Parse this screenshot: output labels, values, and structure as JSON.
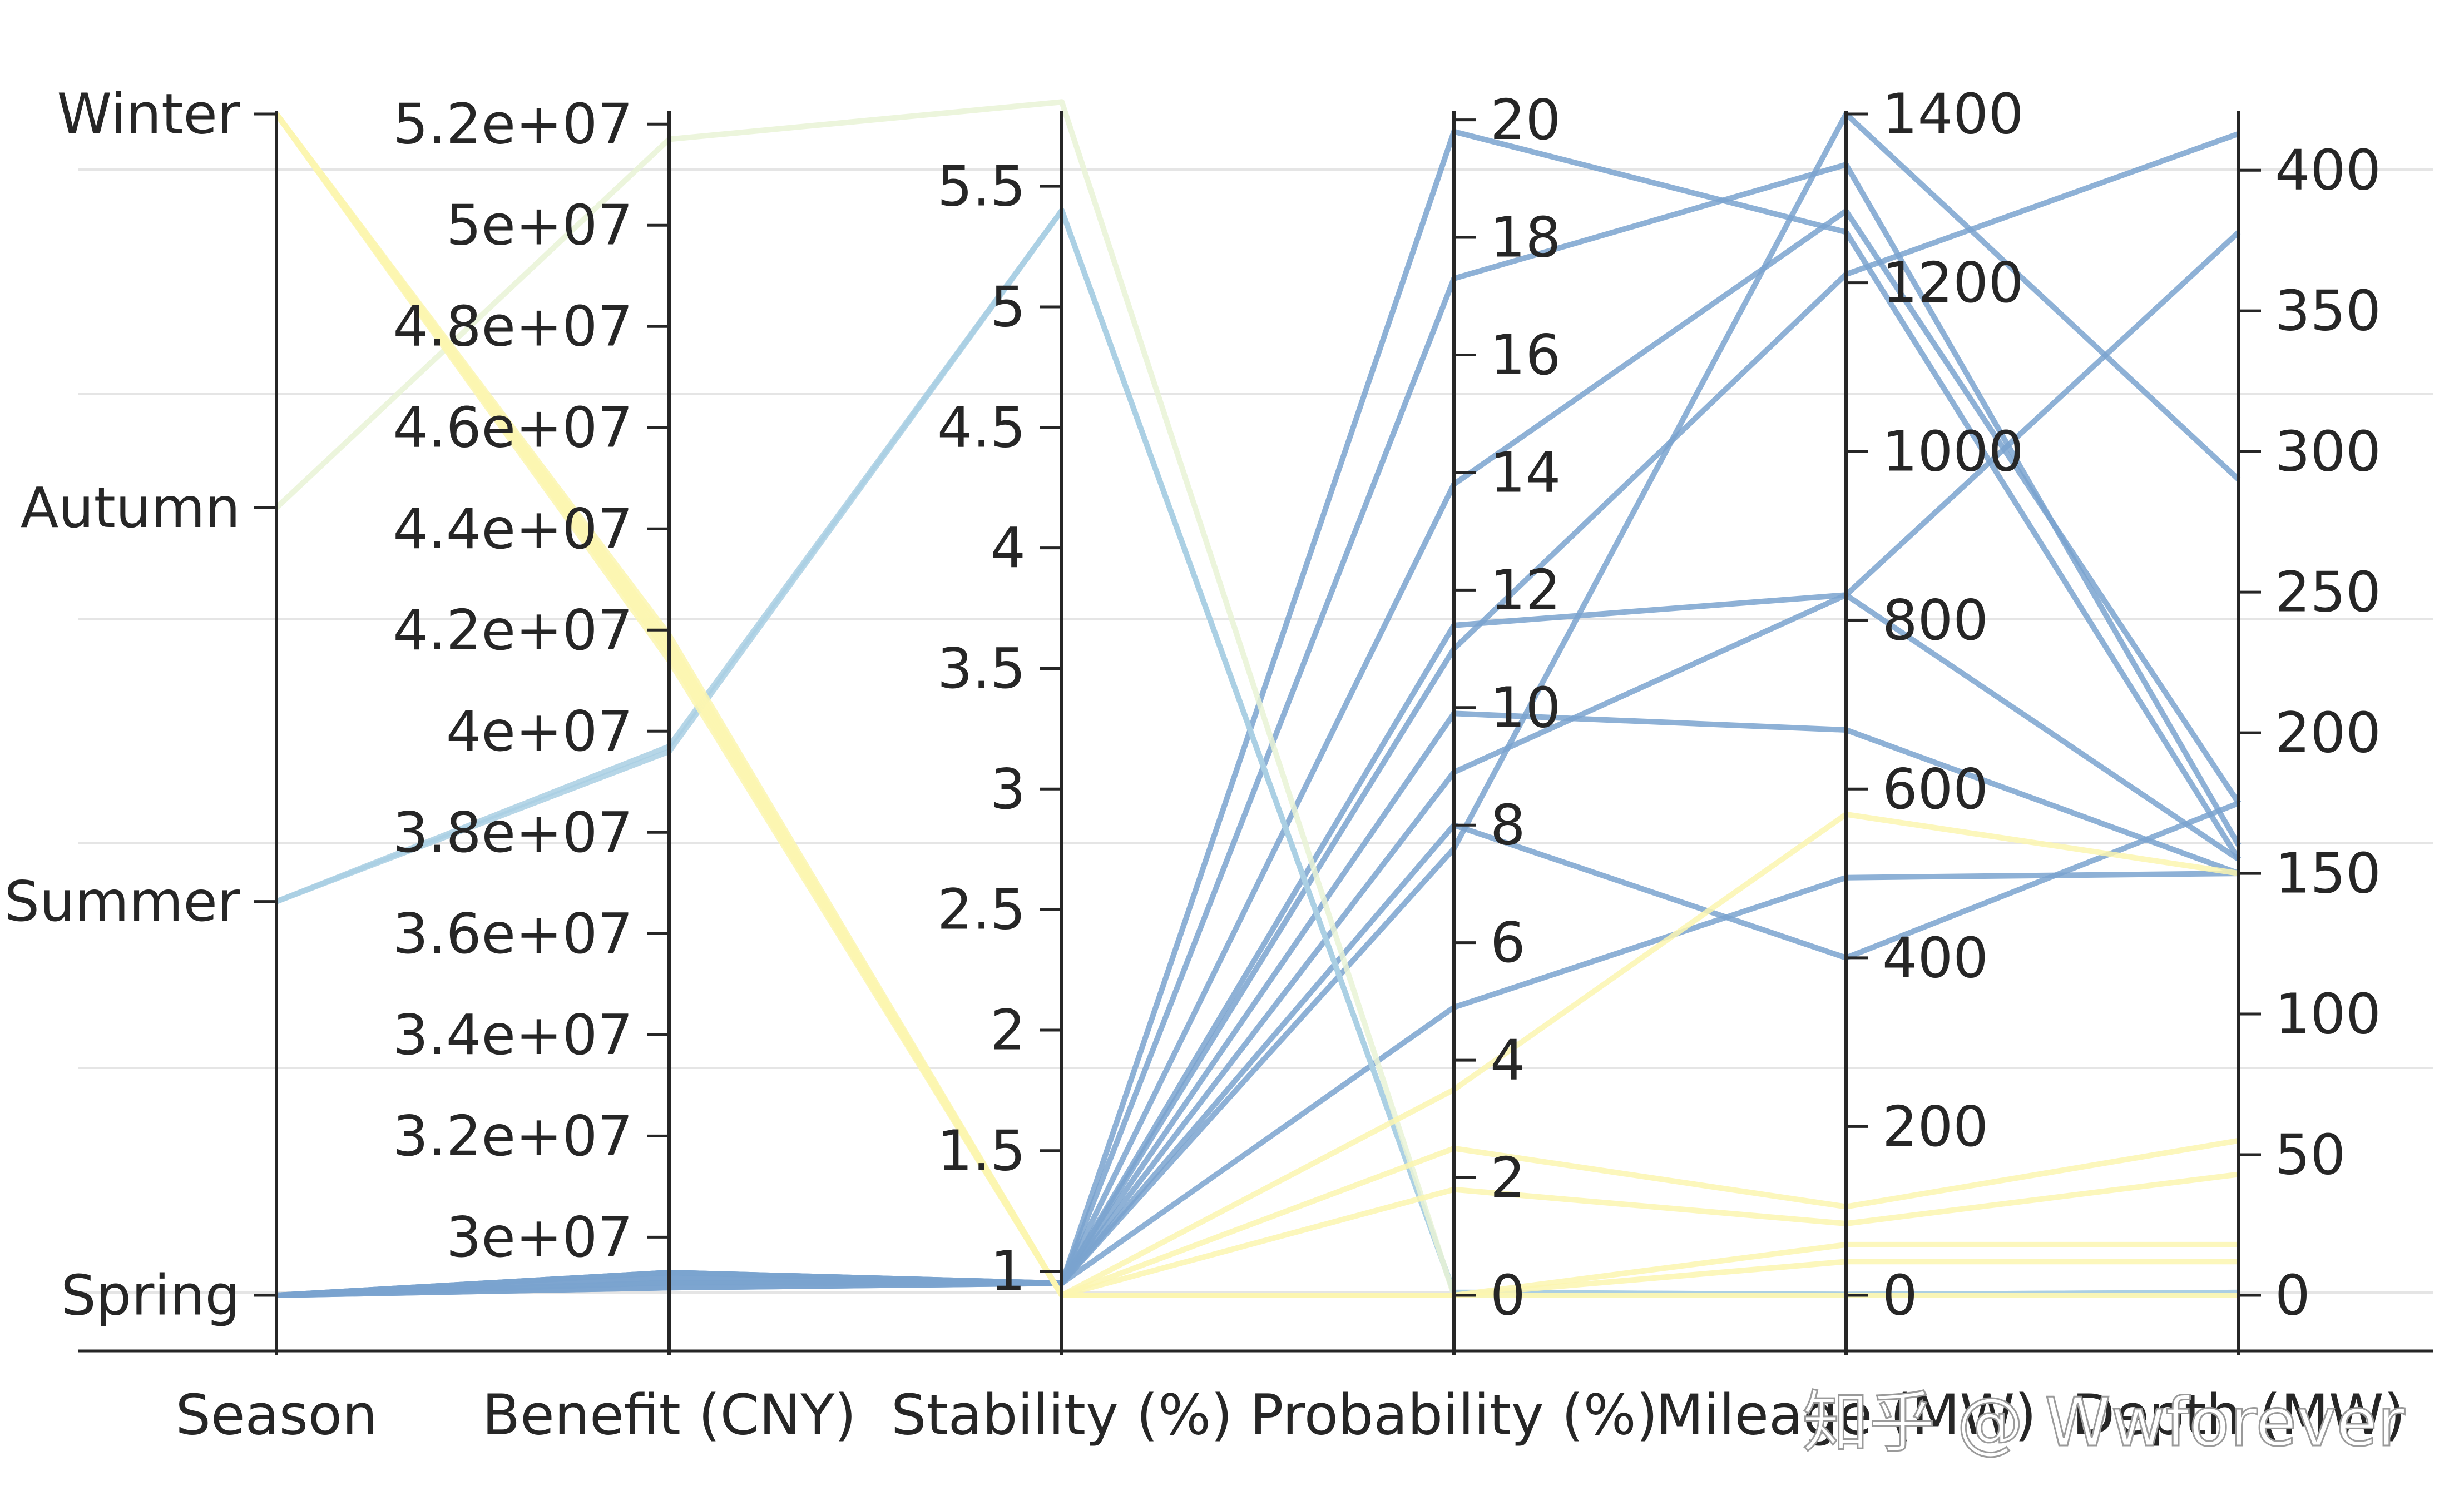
{
  "chart_data": {
    "type": "parallel_coordinates",
    "axes": [
      {
        "key": "season",
        "label": "Season",
        "kind": "categorical",
        "categories": [
          "Spring",
          "Summer",
          "Autumn",
          "Winter"
        ],
        "ticks": [
          "Spring",
          "Summer",
          "Autumn",
          "Winter"
        ]
      },
      {
        "key": "benefit",
        "label": "Benefit (CNY)",
        "kind": "numeric",
        "range": [
          28850000,
          52200000
        ],
        "ticks": [
          "3e+07",
          "3.2e+07",
          "3.4e+07",
          "3.6e+07",
          "3.8e+07",
          "4e+07",
          "4.2e+07",
          "4.4e+07",
          "4.6e+07",
          "4.8e+07",
          "5e+07",
          "5.2e+07"
        ]
      },
      {
        "key": "stability",
        "label": "Stability (%)",
        "kind": "numeric",
        "range": [
          0.9,
          5.8
        ],
        "ticks": [
          "1",
          "1.5",
          "2",
          "2.5",
          "3",
          "3.5",
          "4",
          "4.5",
          "5",
          "5.5"
        ]
      },
      {
        "key": "probability",
        "label": "Probability (%)",
        "kind": "numeric",
        "range": [
          0,
          20.1
        ],
        "ticks": [
          "0",
          "2",
          "4",
          "6",
          "8",
          "10",
          "12",
          "14",
          "16",
          "18",
          "20"
        ]
      },
      {
        "key": "mileage",
        "label": "Mileage (MW)",
        "kind": "numeric",
        "range": [
          0,
          1400
        ],
        "ticks": [
          "0",
          "200",
          "400",
          "600",
          "800",
          "1000",
          "1200",
          "1400"
        ]
      },
      {
        "key": "depth",
        "label": "Depth (MW)",
        "kind": "numeric",
        "range": [
          0,
          420
        ],
        "ticks": [
          "0",
          "50",
          "100",
          "150",
          "200",
          "250",
          "300",
          "350",
          "400"
        ]
      }
    ],
    "series": [
      {
        "name": "Spring",
        "color": "#7aa3cf"
      },
      {
        "name": "Summer",
        "color": "#a9cfe3"
      },
      {
        "name": "Autumn",
        "color": "#e9f3d6"
      },
      {
        "name": "Winter",
        "color": "#fbf6b0"
      }
    ],
    "records": [
      {
        "season": "Spring",
        "benefit": 29300000,
        "stability": 0.95,
        "probability": 19.8,
        "mileage": 1260,
        "depth": 155
      },
      {
        "season": "Spring",
        "benefit": 29200000,
        "stability": 0.95,
        "probability": 17.3,
        "mileage": 1340,
        "depth": 160
      },
      {
        "season": "Spring",
        "benefit": 29100000,
        "stability": 0.95,
        "probability": 13.8,
        "mileage": 1285,
        "depth": 175
      },
      {
        "season": "Spring",
        "benefit": 29000000,
        "stability": 0.95,
        "probability": 11.4,
        "mileage": 830,
        "depth": 155
      },
      {
        "season": "Spring",
        "benefit": 29300000,
        "stability": 0.95,
        "probability": 11.0,
        "mileage": 1210,
        "depth": 413
      },
      {
        "season": "Spring",
        "benefit": 29100000,
        "stability": 0.95,
        "probability": 9.9,
        "mileage": 670,
        "depth": 150
      },
      {
        "season": "Spring",
        "benefit": 29000000,
        "stability": 0.95,
        "probability": 8.9,
        "mileage": 830,
        "depth": 378
      },
      {
        "season": "Spring",
        "benefit": 29200000,
        "stability": 0.95,
        "probability": 8.0,
        "mileage": 400,
        "depth": 175
      },
      {
        "season": "Spring",
        "benefit": 29300000,
        "stability": 0.95,
        "probability": 7.6,
        "mileage": 1400,
        "depth": 290
      },
      {
        "season": "Spring",
        "benefit": 29100000,
        "stability": 0.95,
        "probability": 4.9,
        "mileage": 495,
        "depth": 150
      },
      {
        "season": "Summer",
        "benefit": 39700000,
        "stability": 5.4,
        "probability": 0.05,
        "mileage": 1,
        "depth": 1
      },
      {
        "season": "Summer",
        "benefit": 39600000,
        "stability": 5.4,
        "probability": 0.05,
        "mileage": 1,
        "depth": 1
      },
      {
        "season": "Autumn",
        "benefit": 51700000,
        "stability": 5.85,
        "probability": 0.0,
        "mileage": 0,
        "depth": 0
      },
      {
        "season": "Winter",
        "benefit": 41800000,
        "stability": 0.9,
        "probability": 3.5,
        "mileage": 570,
        "depth": 150
      },
      {
        "season": "Winter",
        "benefit": 41600000,
        "stability": 0.9,
        "probability": 2.5,
        "mileage": 105,
        "depth": 55
      },
      {
        "season": "Winter",
        "benefit": 41700000,
        "stability": 0.9,
        "probability": 1.8,
        "mileage": 85,
        "depth": 43
      },
      {
        "season": "Winter",
        "benefit": 41500000,
        "stability": 0.9,
        "probability": 0.0,
        "mileage": 60,
        "depth": 18
      },
      {
        "season": "Winter",
        "benefit": 41900000,
        "stability": 0.9,
        "probability": 0.0,
        "mileage": 40,
        "depth": 12
      },
      {
        "season": "Winter",
        "benefit": 41400000,
        "stability": 0.9,
        "probability": 0.0,
        "mileage": 0,
        "depth": 0
      }
    ],
    "grid": true,
    "legend": "none"
  },
  "watermark": "知乎 @ Wwforever"
}
